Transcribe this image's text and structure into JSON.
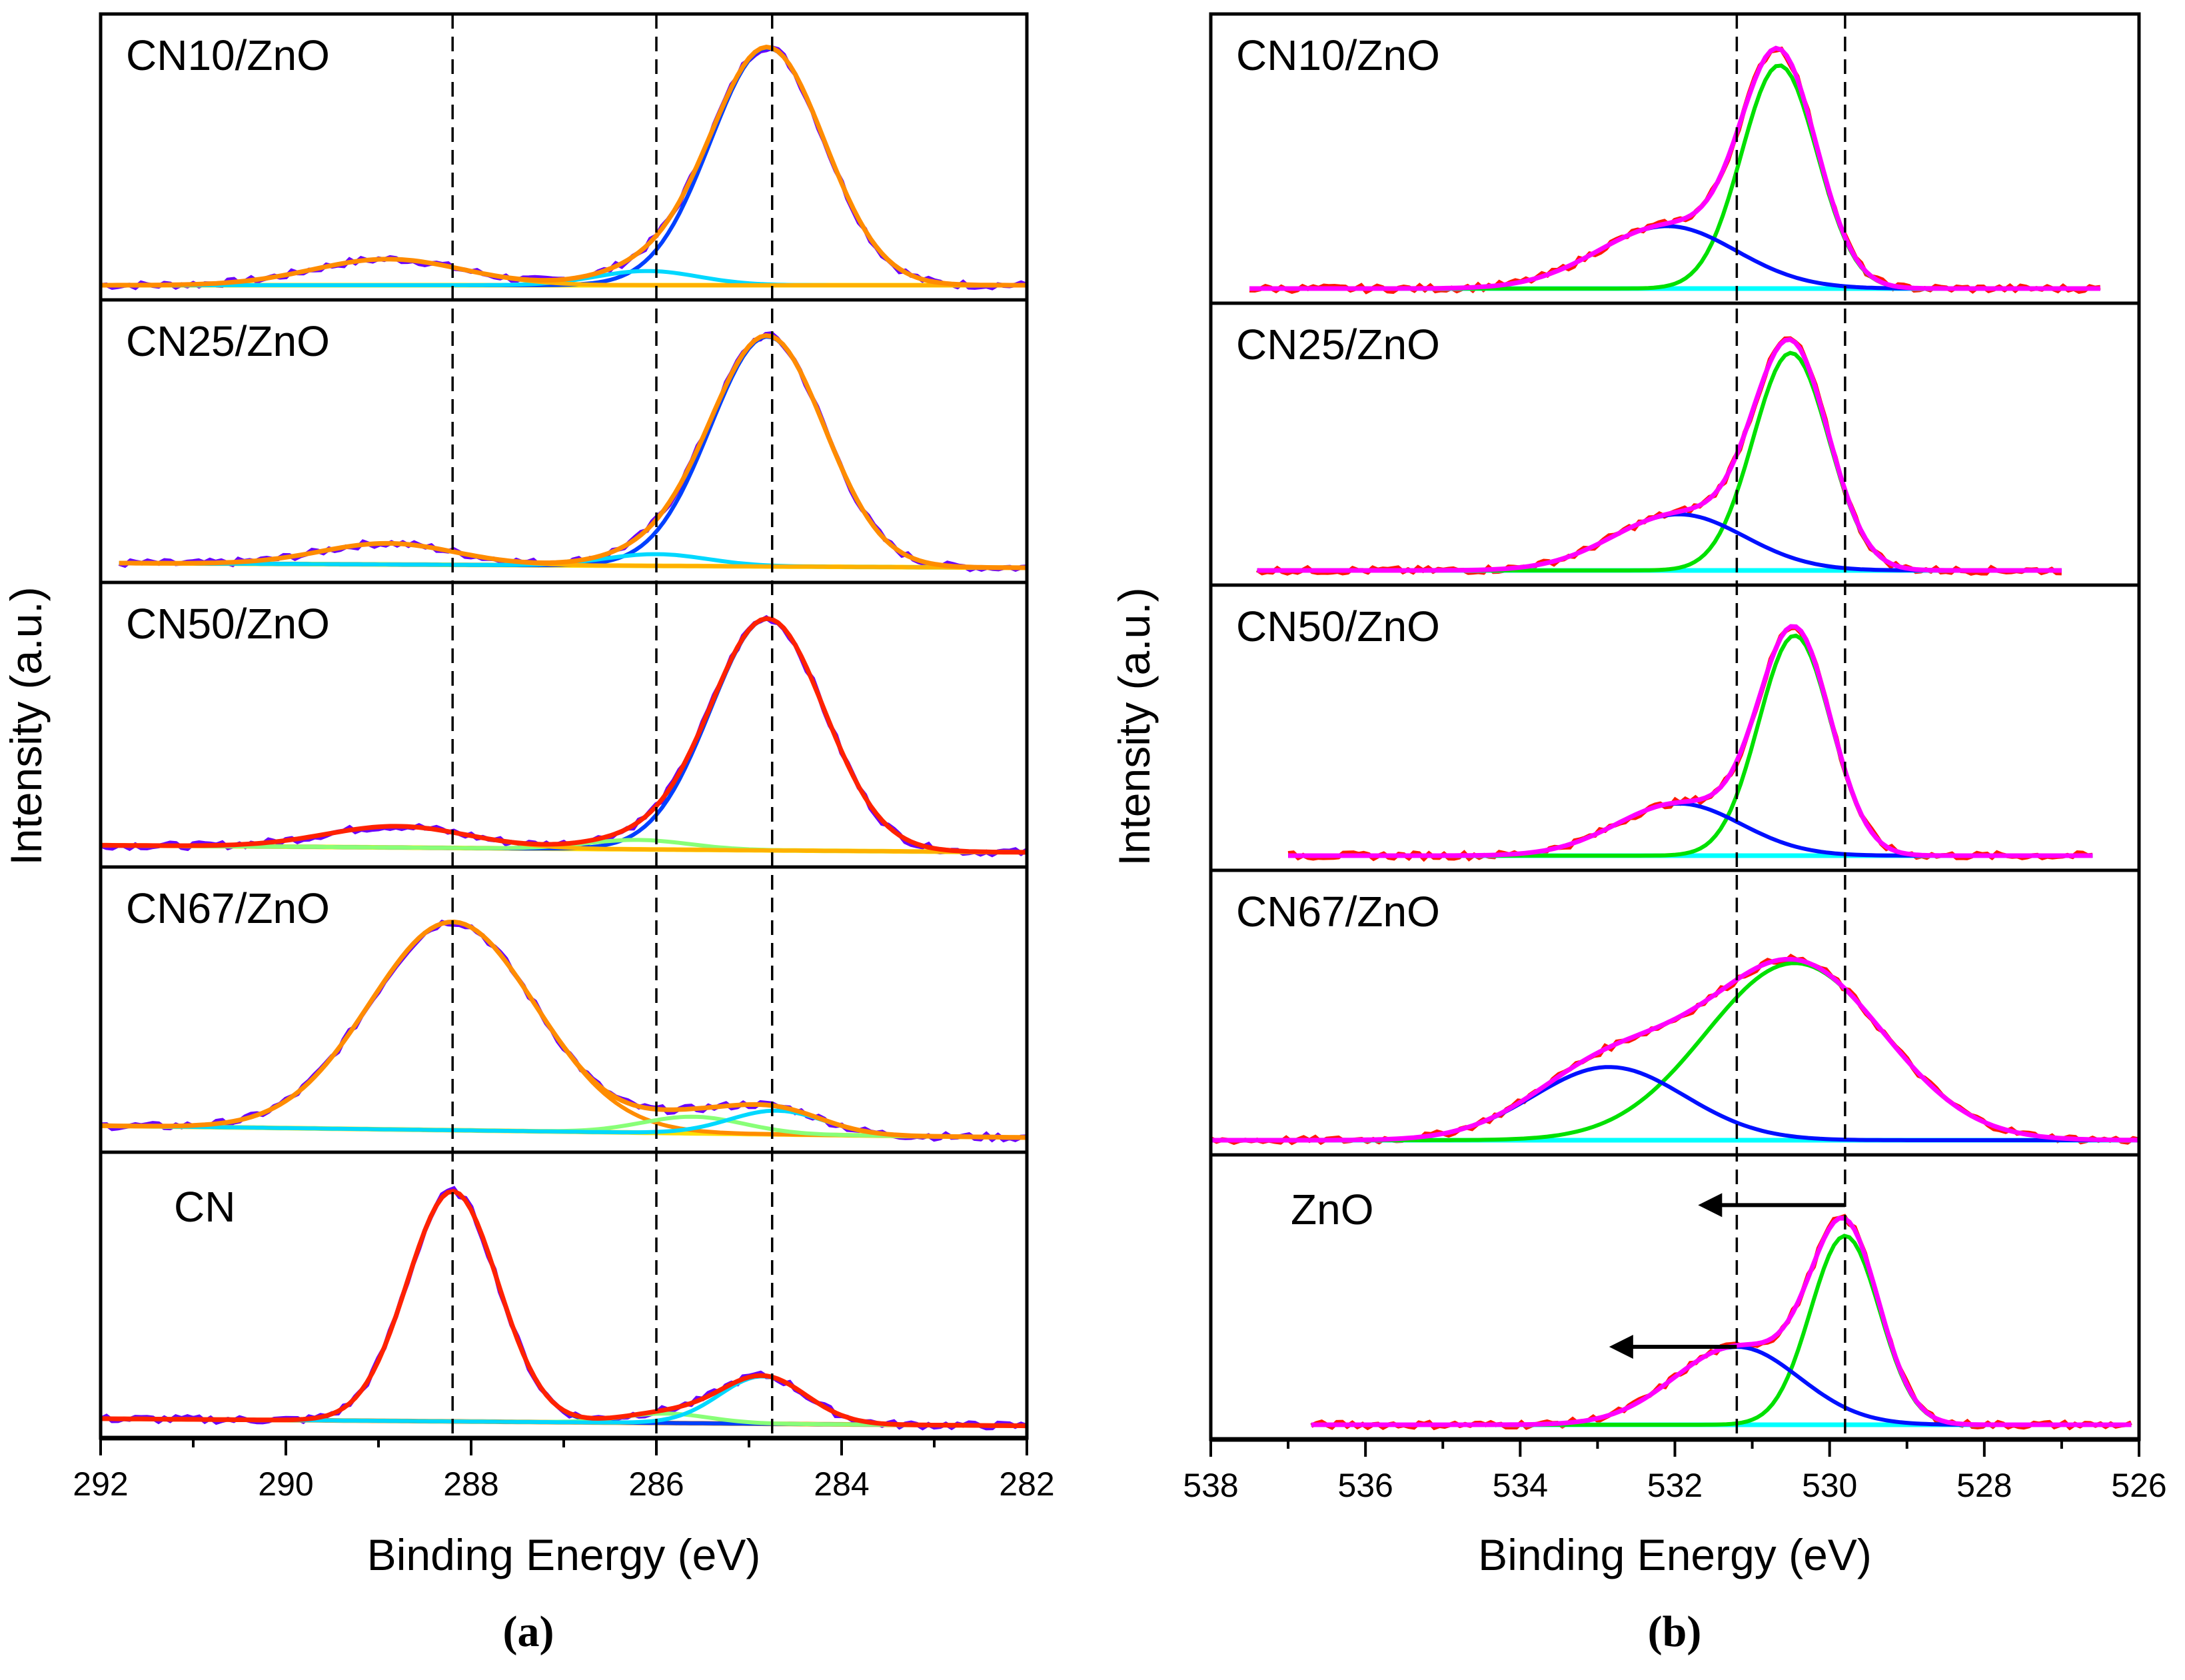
{
  "chart_data": [
    {
      "panel_label": "(a)",
      "type": "line",
      "xlabel": "Binding Energy (eV)",
      "ylabel": "Intensity (a.u.)",
      "xlim": [
        292,
        282
      ],
      "x_ticks": [
        292,
        290,
        288,
        286,
        284,
        282
      ],
      "x_reversed": true,
      "y_ticks_shown": false,
      "reference_lines": [
        288.2,
        286.0,
        284.75
      ],
      "samples": [
        {
          "name": "CN10/ZnO",
          "range": [
            292,
            282
          ],
          "raw_color": "#6a00ff",
          "envelope_color": "#ff8c00",
          "baseline": [
            0.0,
            0.0
          ],
          "baseline_color": "#ffe000",
          "components": [
            {
              "center": 284.8,
              "fwhm": 1.45,
              "height": 1.0,
              "color": "#0040ff"
            },
            {
              "center": 286.1,
              "fwhm": 1.3,
              "height": 0.06,
              "color": "#00d8ff"
            },
            {
              "center": 288.9,
              "fwhm": 1.9,
              "height": 0.11,
              "color": "#ffb000"
            }
          ]
        },
        {
          "name": "CN25/ZnO",
          "range": [
            291.8,
            282
          ],
          "raw_color": "#6a00ff",
          "envelope_color": "#ff8c00",
          "baseline": [
            0.02,
            0.0
          ],
          "baseline_color": "#ffe000",
          "components": [
            {
              "center": 284.8,
              "fwhm": 1.45,
              "height": 0.98,
              "color": "#0040ff"
            },
            {
              "center": 286.0,
              "fwhm": 1.3,
              "height": 0.05,
              "color": "#00d8ff"
            },
            {
              "center": 288.9,
              "fwhm": 1.7,
              "height": 0.09,
              "color": "#ffb000"
            }
          ]
        },
        {
          "name": "CN50/ZnO",
          "range": [
            292,
            282
          ],
          "raw_color": "#6a00ff",
          "envelope_color": "#ff2200",
          "baseline": [
            0.03,
            0.0
          ],
          "baseline_color": "#ffe000",
          "components": [
            {
              "center": 284.8,
              "fwhm": 1.45,
              "height": 0.98,
              "color": "#0040ff"
            },
            {
              "center": 286.2,
              "fwhm": 1.3,
              "height": 0.04,
              "color": "#88ff77"
            },
            {
              "center": 288.8,
              "fwhm": 1.8,
              "height": 0.09,
              "color": "#ffb000"
            }
          ]
        },
        {
          "name": "CN67/ZnO",
          "range": [
            292,
            282
          ],
          "raw_color": "#6a00ff",
          "envelope_color": "#ff8c00",
          "baseline": [
            0.05,
            0.0
          ],
          "baseline_color": "#ffe000",
          "components": [
            {
              "center": 288.2,
              "fwhm": 2.1,
              "height": 0.88,
              "color": "#ff8c00"
            },
            {
              "center": 285.6,
              "fwhm": 1.3,
              "height": 0.07,
              "color": "#88ff77"
            },
            {
              "center": 284.7,
              "fwhm": 1.2,
              "height": 0.1,
              "color": "#00d8ff"
            }
          ]
        },
        {
          "name": "CN",
          "range": [
            292,
            282
          ],
          "raw_color": "#6a00ff",
          "envelope_color": "#ff2200",
          "baseline": [
            0.02,
            -0.01
          ],
          "baseline_color": "#ff8c00",
          "components": [
            {
              "center": 288.2,
              "fwhm": 1.15,
              "height": 0.97,
              "color": "#0040ff"
            },
            {
              "center": 285.9,
              "fwhm": 1.1,
              "height": 0.04,
              "color": "#88ff77"
            },
            {
              "center": 284.85,
              "fwhm": 1.1,
              "height": 0.2,
              "color": "#00d8ff"
            }
          ]
        }
      ]
    },
    {
      "panel_label": "(b)",
      "type": "line",
      "xlabel": "Binding Energy (eV)",
      "ylabel": "Intensity (a.u.)",
      "xlim": [
        538,
        526
      ],
      "x_ticks": [
        538,
        536,
        534,
        532,
        530,
        528,
        526
      ],
      "x_reversed": true,
      "y_ticks_shown": false,
      "reference_lines": [
        531.2,
        529.8
      ],
      "samples": [
        {
          "name": "CN10/ZnO",
          "range": [
            537.5,
            526.5
          ],
          "raw_color": "#ff1a00",
          "envelope_color": "#ff00ff",
          "baseline": [
            0.0,
            0.0
          ],
          "baseline_color": "#00ffff",
          "components": [
            {
              "center": 530.65,
              "fwhm": 1.15,
              "height": 0.93,
              "color": "#00e000"
            },
            {
              "center": 532.1,
              "fwhm": 2.1,
              "height": 0.26,
              "color": "#0010ff"
            }
          ]
        },
        {
          "name": "CN25/ZnO",
          "range": [
            537.4,
            527
          ],
          "raw_color": "#ff1a00",
          "envelope_color": "#ff00ff",
          "baseline": [
            0.0,
            0.0
          ],
          "baseline_color": "#00ffff",
          "components": [
            {
              "center": 530.5,
              "fwhm": 1.15,
              "height": 0.93,
              "color": "#00e000"
            },
            {
              "center": 531.95,
              "fwhm": 2.0,
              "height": 0.24,
              "color": "#0010ff"
            }
          ]
        },
        {
          "name": "CN50/ZnO",
          "range": [
            537,
            526.6
          ],
          "raw_color": "#ff1a00",
          "envelope_color": "#ff00ff",
          "baseline": [
            0.0,
            0.0
          ],
          "baseline_color": "#00ffff",
          "components": [
            {
              "center": 530.45,
              "fwhm": 1.1,
              "height": 0.93,
              "color": "#00e000"
            },
            {
              "center": 531.95,
              "fwhm": 1.9,
              "height": 0.22,
              "color": "#0010ff"
            }
          ]
        },
        {
          "name": "CN67/ZnO",
          "range": [
            538,
            526
          ],
          "raw_color": "#ff1a00",
          "envelope_color": "#ff00ff",
          "baseline": [
            0.0,
            0.0
          ],
          "baseline_color": "#00ffff",
          "components": [
            {
              "center": 530.45,
              "fwhm": 2.7,
              "height": 0.75,
              "color": "#00e000"
            },
            {
              "center": 532.85,
              "fwhm": 2.3,
              "height": 0.31,
              "color": "#0010ff"
            }
          ]
        },
        {
          "name": "ZnO",
          "range": [
            536.7,
            526.1
          ],
          "raw_color": "#ff1a00",
          "envelope_color": "#ff00ff",
          "baseline": [
            0.0,
            0.0
          ],
          "baseline_color": "#00ffff",
          "components": [
            {
              "center": 529.8,
              "fwhm": 1.05,
              "height": 0.8,
              "color": "#00e000"
            },
            {
              "center": 531.2,
              "fwhm": 1.9,
              "height": 0.33,
              "color": "#0010ff"
            }
          ],
          "arrows": [
            {
              "from": 529.8,
              "to": 531.7,
              "at_intensity": 0.93
            },
            {
              "from": 531.2,
              "to": 532.85,
              "at_intensity": 0.33
            }
          ]
        }
      ]
    }
  ]
}
